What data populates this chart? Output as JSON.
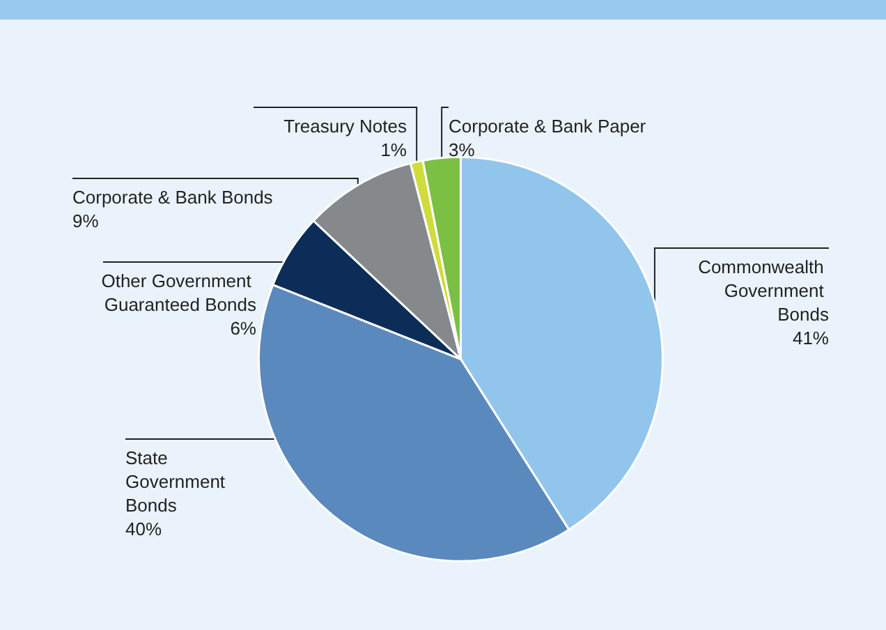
{
  "chart_data": {
    "type": "pie",
    "categories": [
      "Commonwealth Government Bonds",
      "State Government Bonds",
      "Other Government Guaranteed Bonds",
      "Corporate & Bank Bonds",
      "Treasury Notes",
      "Corporate & Bank Paper"
    ],
    "values": [
      41,
      40,
      6,
      9,
      1,
      3
    ],
    "value_labels": [
      "41%",
      "40%",
      "6%",
      "9%",
      "1%",
      "3%"
    ],
    "colors": [
      "#92c5eb",
      "#5a89bd",
      "#0b2d58",
      "#86898c",
      "#cfdc3c",
      "#7bc043"
    ],
    "legend": false
  }
}
